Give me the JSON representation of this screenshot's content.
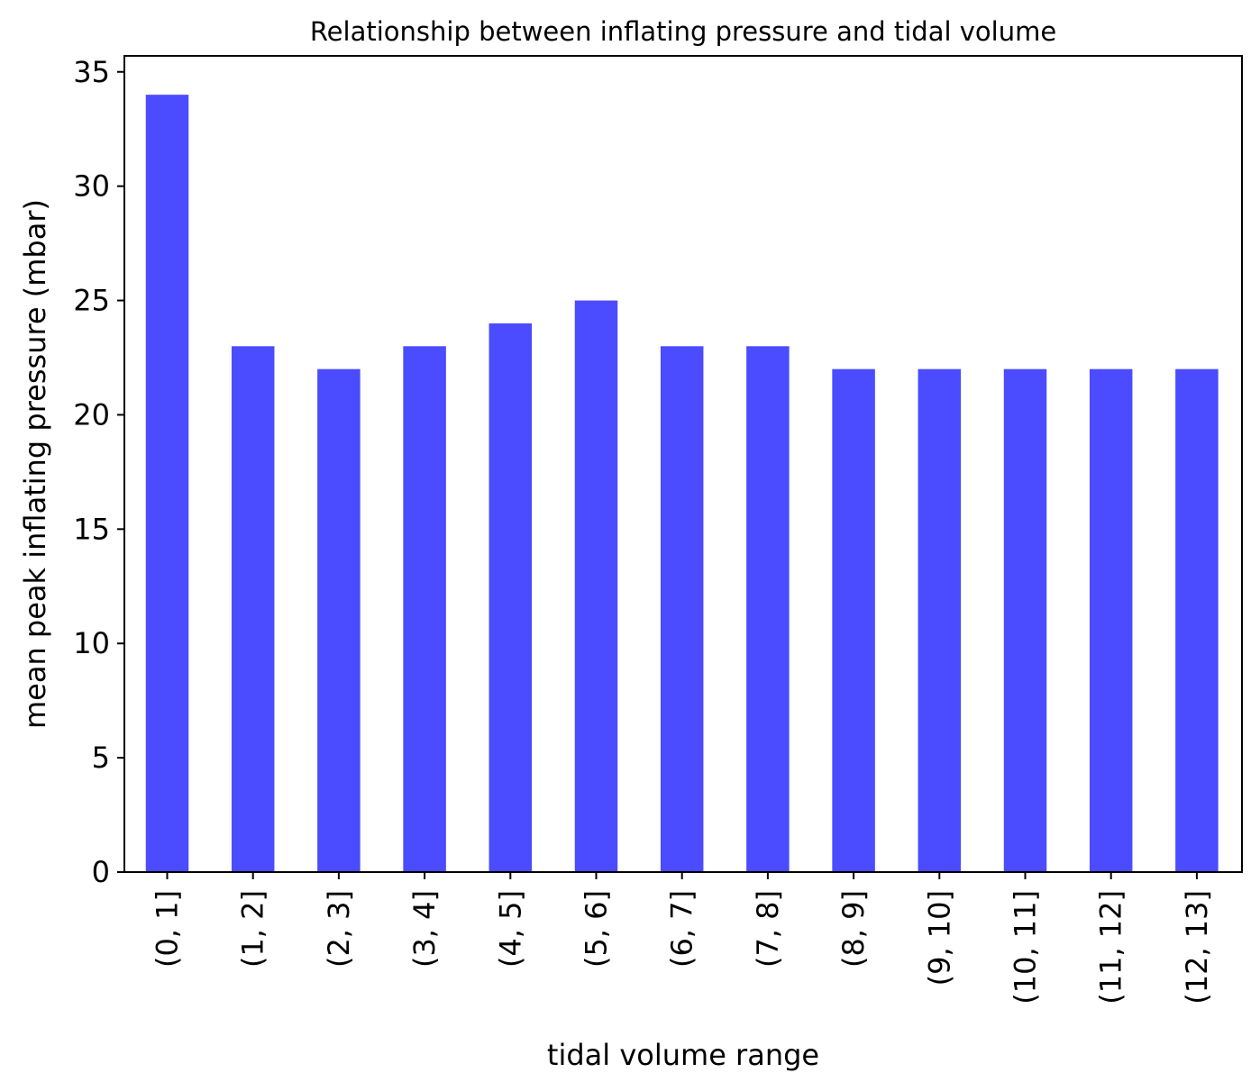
{
  "chart_data": {
    "type": "bar",
    "title": "Relationship between inflating pressure and tidal volume",
    "xlabel": "tidal volume range",
    "ylabel": "mean peak inflating pressure (mbar)",
    "categories": [
      "(0, 1]",
      "(1, 2]",
      "(2, 3]",
      "(3, 4]",
      "(4, 5]",
      "(5, 6]",
      "(6, 7]",
      "(7, 8]",
      "(8, 9]",
      "(9, 10]",
      "(10, 11]",
      "(11, 12]",
      "(12, 13]"
    ],
    "values": [
      34,
      23,
      22,
      23,
      24,
      25,
      23,
      23,
      22,
      22,
      22,
      22,
      22
    ],
    "ylim": [
      0,
      35.7
    ],
    "yticks": [
      0,
      5,
      10,
      15,
      20,
      25,
      30,
      35
    ],
    "bar_color": "#4b4bff",
    "grid": false,
    "legend": "none"
  }
}
